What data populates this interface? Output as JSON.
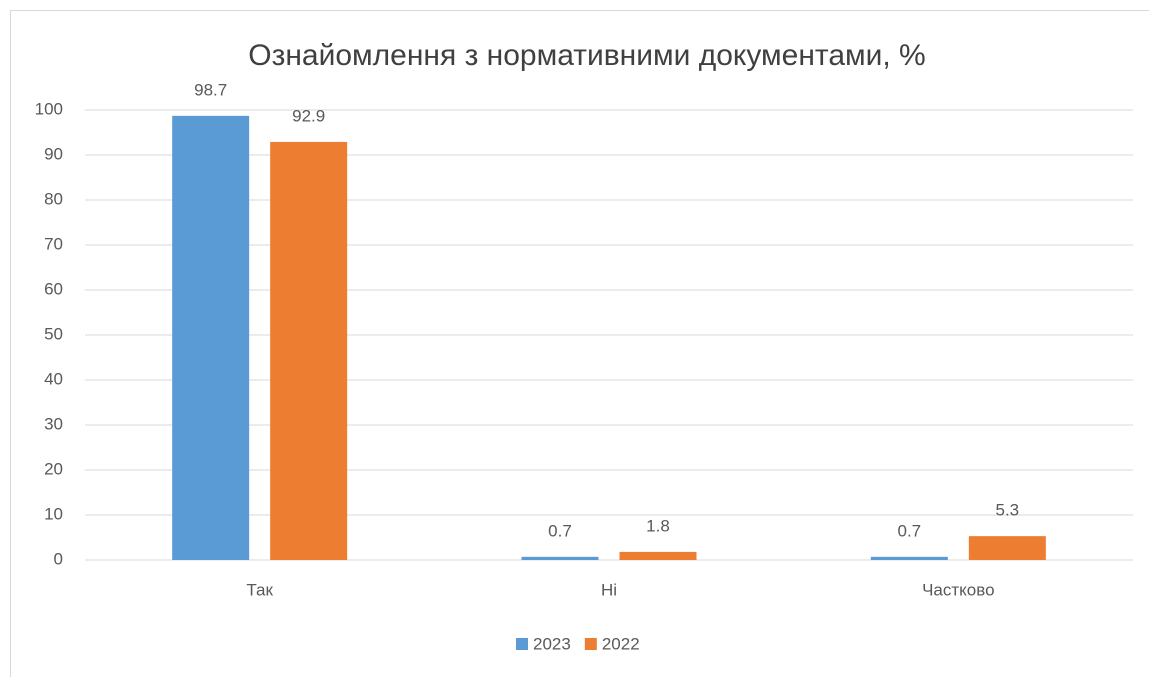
{
  "chart_data": {
    "type": "bar",
    "title": "Ознайомлення з нормативними документами, %",
    "categories": [
      "Так",
      "Ні",
      "Частково"
    ],
    "series": [
      {
        "name": "2023",
        "color": "#5b9bd5",
        "values": [
          98.7,
          0.7,
          0.7
        ]
      },
      {
        "name": "2022",
        "color": "#ed7d31",
        "values": [
          92.9,
          1.8,
          5.3
        ]
      }
    ],
    "ylim": [
      0,
      100
    ],
    "yticks": [
      0,
      10,
      20,
      30,
      40,
      50,
      60,
      70,
      80,
      90,
      100
    ],
    "grid": true,
    "legend": "bottom"
  }
}
